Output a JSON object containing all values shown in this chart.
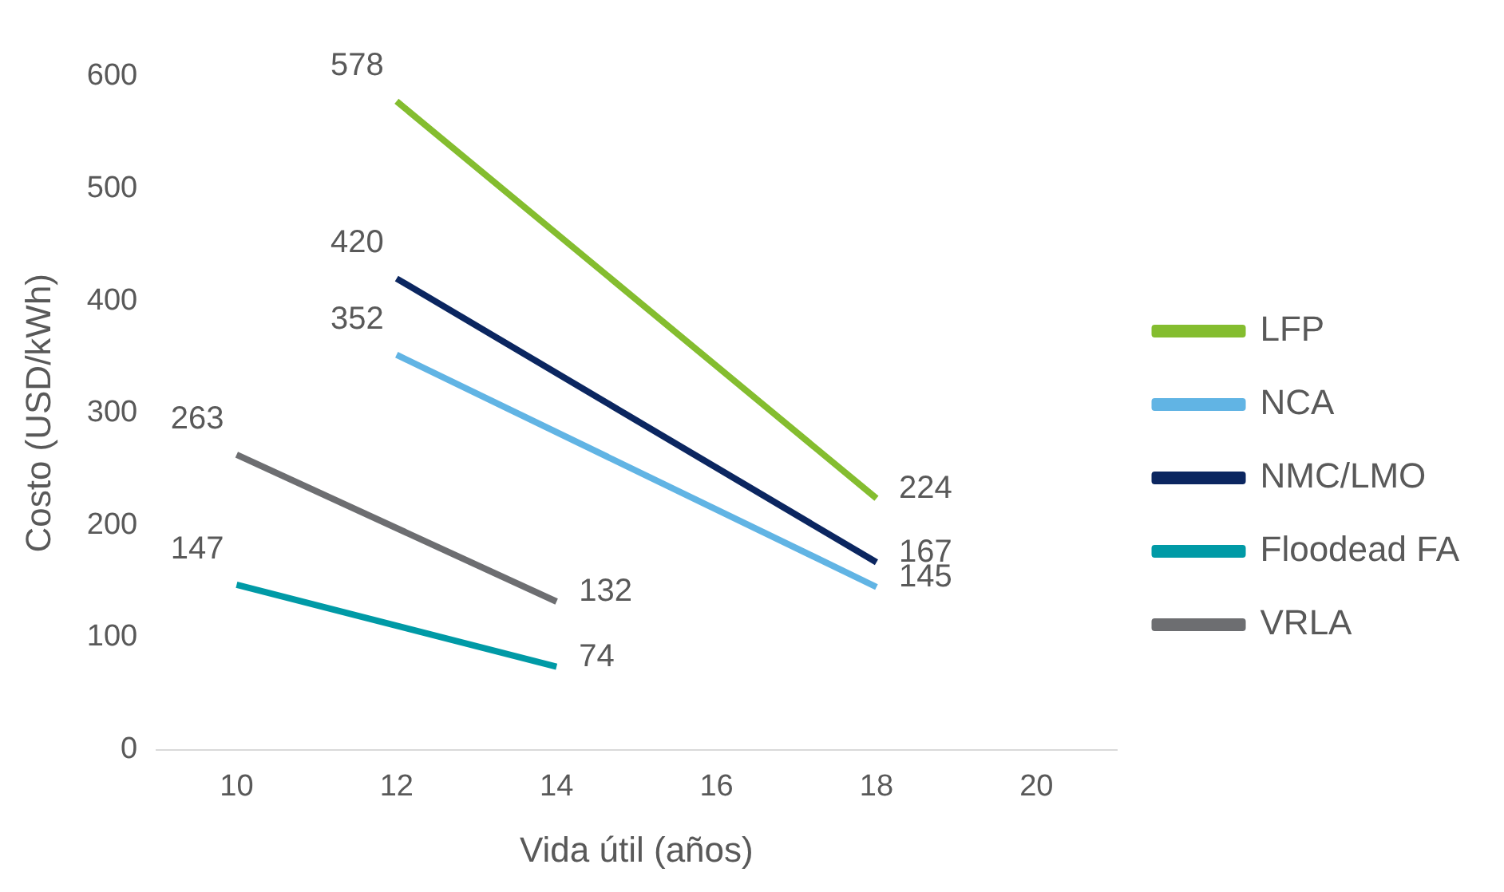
{
  "chart_data": {
    "type": "line",
    "xlabel": "Vida útil (años)",
    "ylabel": "Costo (USD/kWh)",
    "xlim": [
      9,
      21
    ],
    "xticks": [
      10,
      12,
      14,
      16,
      18,
      20
    ],
    "ylim": [
      0,
      600
    ],
    "yticks": [
      0,
      100,
      200,
      300,
      400,
      500,
      600
    ],
    "grid": false,
    "legend": "right",
    "data_labels": true,
    "series": [
      {
        "name": "LFP",
        "color": "#84bd2f",
        "x": [
          12,
          18
        ],
        "values": [
          578,
          224
        ]
      },
      {
        "name": "NCA",
        "color": "#61b4e4",
        "x": [
          12,
          18
        ],
        "values": [
          352,
          145
        ]
      },
      {
        "name": "NMC/LMO",
        "color": "#0b2660",
        "x": [
          12,
          18
        ],
        "values": [
          420,
          167
        ]
      },
      {
        "name": "Floodead FA",
        "color": "#009aa6",
        "x": [
          10,
          14
        ],
        "values": [
          147,
          74
        ]
      },
      {
        "name": "VRLA",
        "color": "#6d6e71",
        "x": [
          10,
          14
        ],
        "values": [
          263,
          132
        ]
      }
    ]
  }
}
